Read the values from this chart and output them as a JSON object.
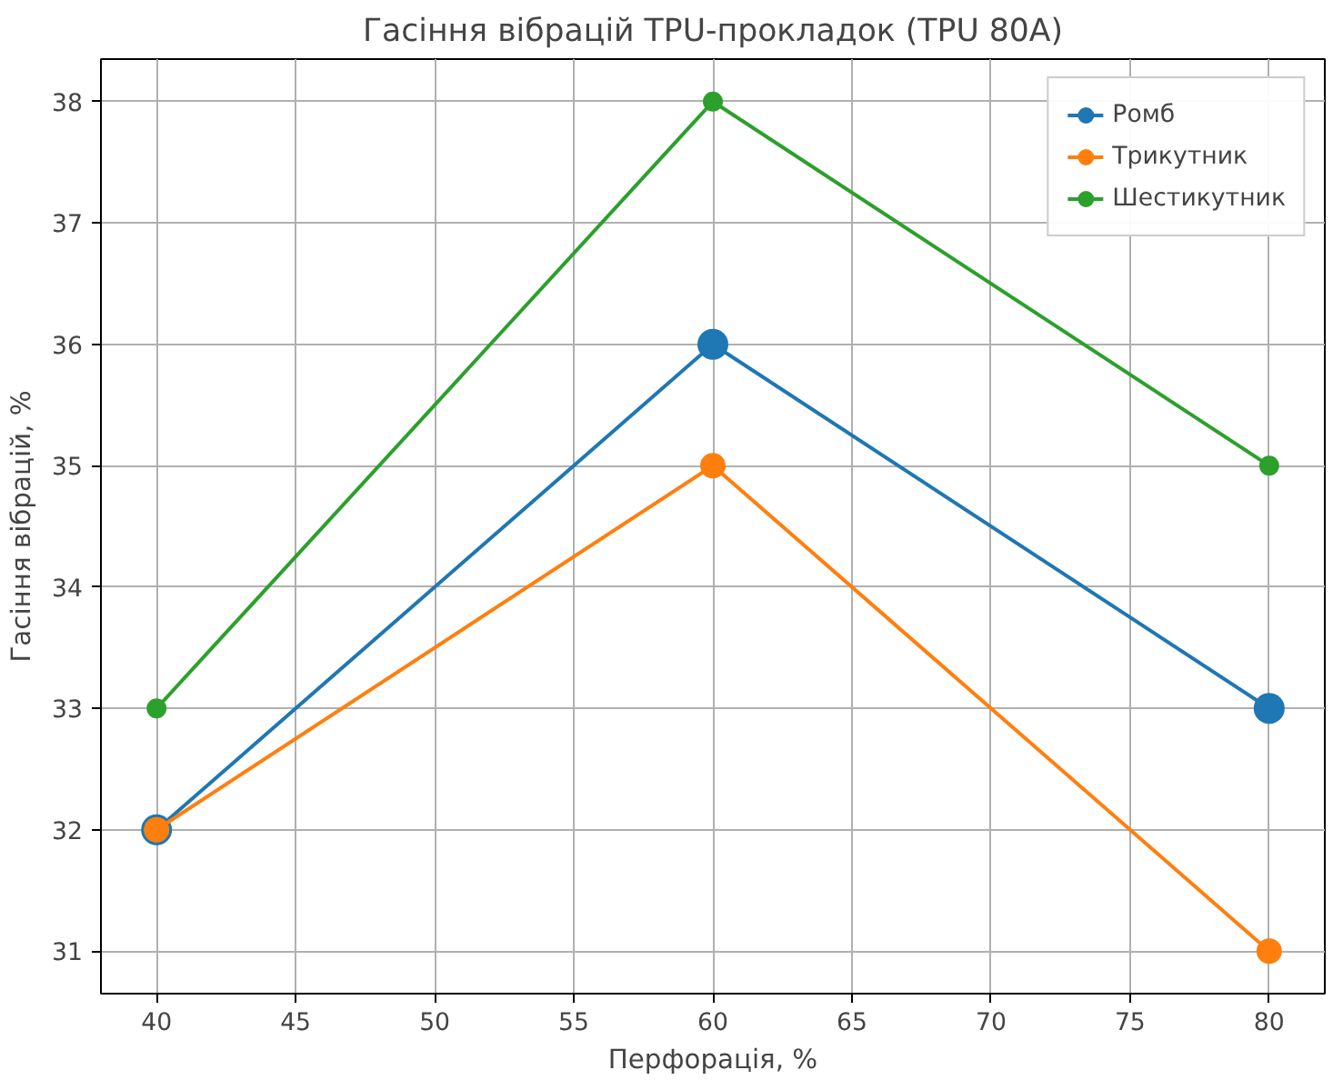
{
  "chart_data": {
    "type": "line",
    "title": "Гасіння вібрацій TPU-прокладок (TPU 80A)",
    "xlabel": "Перфорація, %",
    "ylabel": "Гасіння вібрацій, %",
    "x": [
      40,
      60,
      80
    ],
    "series": [
      {
        "name": "Ромб",
        "color": "#1f77b4",
        "values": [
          32,
          36,
          33
        ]
      },
      {
        "name": "Трикутник",
        "color": "#ff7f0e",
        "values": [
          32,
          35,
          31
        ]
      },
      {
        "name": "Шестикутник",
        "color": "#2ca02c",
        "values": [
          33,
          38,
          35
        ]
      }
    ],
    "xlim": [
      38,
      82
    ],
    "ylim": [
      30.65,
      38.35
    ],
    "xticks": [
      40,
      45,
      50,
      55,
      60,
      65,
      70,
      75,
      80
    ],
    "yticks": [
      31,
      32,
      33,
      34,
      35,
      36,
      37,
      38
    ],
    "grid": true,
    "legend": "top right",
    "marker": "circle",
    "line_style": "solid"
  }
}
